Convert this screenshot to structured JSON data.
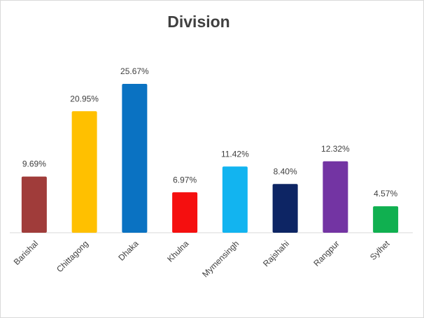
{
  "chart_data": {
    "type": "bar",
    "title": "Division",
    "categories": [
      "Barishal",
      "Chittagong",
      "Dhaka",
      "Khulna",
      "Mymensingh",
      "Rajshahi",
      "Rangpur",
      "Sylhet"
    ],
    "values": [
      9.69,
      20.95,
      25.67,
      6.97,
      11.42,
      8.4,
      12.32,
      4.57
    ],
    "value_labels": [
      "9.69%",
      "20.95%",
      "25.67%",
      "6.97%",
      "11.42%",
      "8.40%",
      "12.32%",
      "4.57%"
    ],
    "colors": [
      "#a03c3a",
      "#ffc000",
      "#0a72c2",
      "#f50f0f",
      "#12b4f0",
      "#0d2564",
      "#7334a3",
      "#10b050"
    ]
  }
}
